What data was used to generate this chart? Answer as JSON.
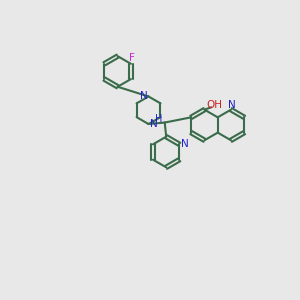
{
  "bg": "#e8e8e8",
  "bc": "#3a6b4a",
  "Nc": "#2020cc",
  "Oc": "#cc2020",
  "Fc": "#cc22cc",
  "lw": 1.5,
  "figsize": [
    3.0,
    3.0
  ],
  "dpi": 100,
  "xlim": [
    0,
    10
  ],
  "ylim": [
    0,
    10
  ]
}
